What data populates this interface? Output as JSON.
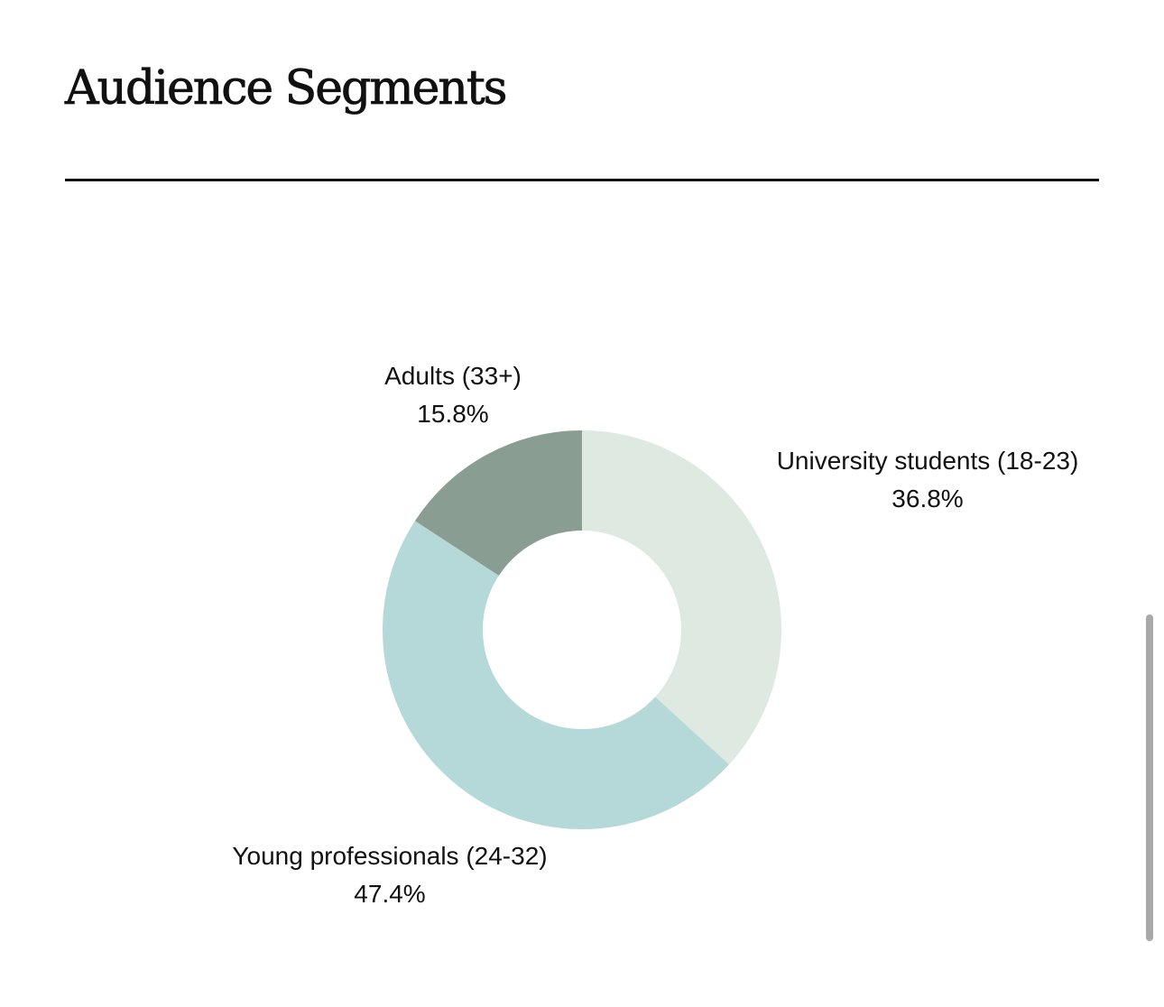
{
  "header": {
    "title": "Audience Segments"
  },
  "chart_data": {
    "type": "pie",
    "variant": "donut",
    "title": "Audience Segments",
    "start_angle_deg": 0,
    "direction": "clockwise",
    "slices": [
      {
        "name": "University students (18-23)",
        "value": 36.8,
        "value_label": "36.8%",
        "color": "#dde9e1"
      },
      {
        "name": "Young professionals (24-32)",
        "value": 47.4,
        "value_label": "47.4%",
        "color": "#b5d9d8"
      },
      {
        "name": "Adults (33+)",
        "value": 15.8,
        "value_label": "15.8%",
        "color": "#899d92"
      }
    ]
  }
}
